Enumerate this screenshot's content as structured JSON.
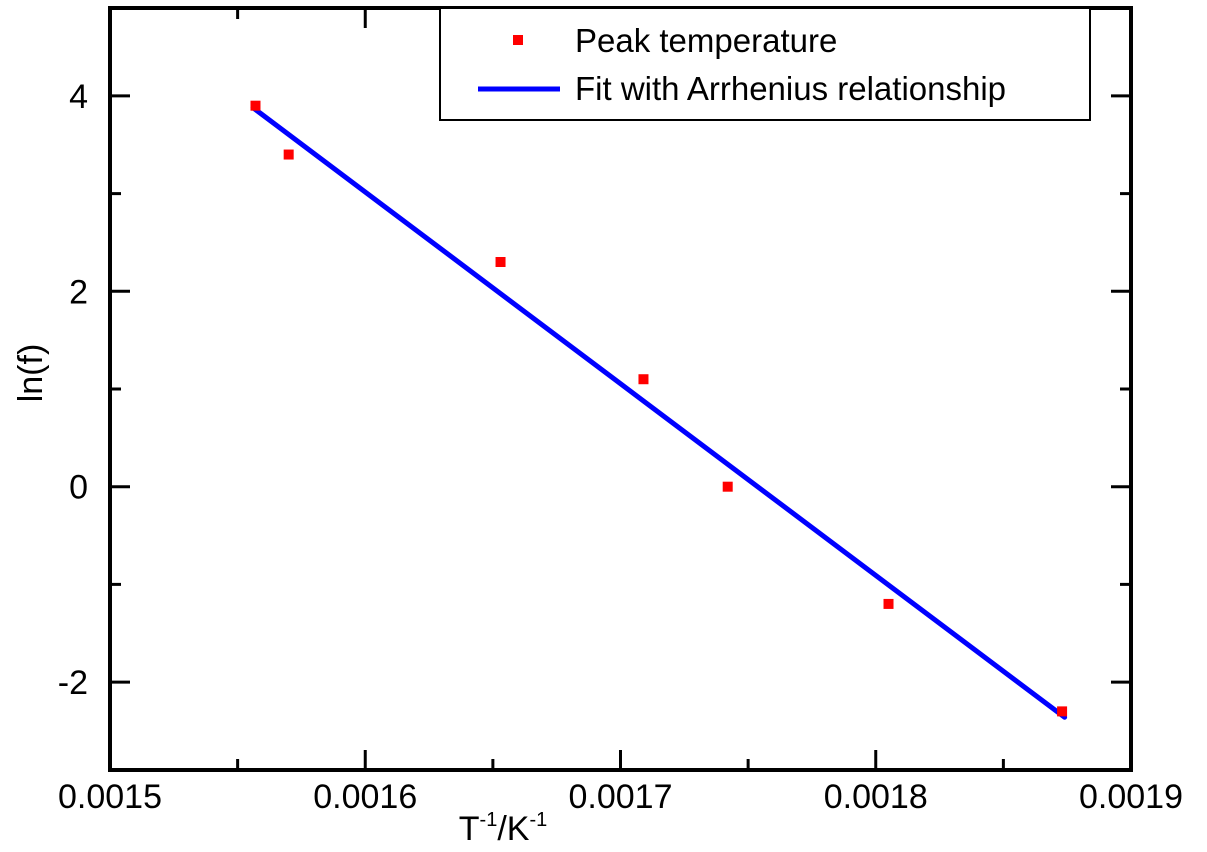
{
  "chart_data": {
    "type": "scatter",
    "xlabel": {
      "base": "T",
      "sup1": "-1",
      "sep": "/K",
      "sup2": "-1"
    },
    "ylabel": "ln(f)",
    "xlim": [
      0.0015,
      0.0019
    ],
    "ylim": [
      -2.9,
      4.9
    ],
    "x_major_ticks": [
      0.0015,
      0.0016,
      0.0017,
      0.0018,
      0.0019
    ],
    "x_tick_labels": [
      "0.0015",
      "0.0016",
      "0.0017",
      "0.0018",
      "0.0019"
    ],
    "x_minor_ticks": [
      0.00155,
      0.00165,
      0.00175,
      0.00185
    ],
    "y_major_ticks": [
      -2,
      0,
      2,
      4
    ],
    "y_tick_labels": [
      "-2",
      "0",
      "2",
      "4"
    ],
    "y_minor_ticks": [
      -1,
      1,
      3
    ],
    "grid": false,
    "legend_position": "top-right",
    "series": [
      {
        "name": "Peak temperature",
        "kind": "scatter",
        "color": "#ff0000",
        "marker": "square",
        "x": [
          0.001557,
          0.00157,
          0.001653,
          0.001709,
          0.001742,
          0.001805,
          0.001873
        ],
        "y": [
          3.9,
          3.4,
          2.3,
          1.1,
          0.0,
          -1.2,
          -2.3
        ]
      },
      {
        "name": "Fit with Arrhenius relationship",
        "kind": "line",
        "color": "#0000ff",
        "x": [
          0.001556,
          0.001874
        ],
        "y": [
          3.88,
          -2.36
        ]
      }
    ]
  }
}
